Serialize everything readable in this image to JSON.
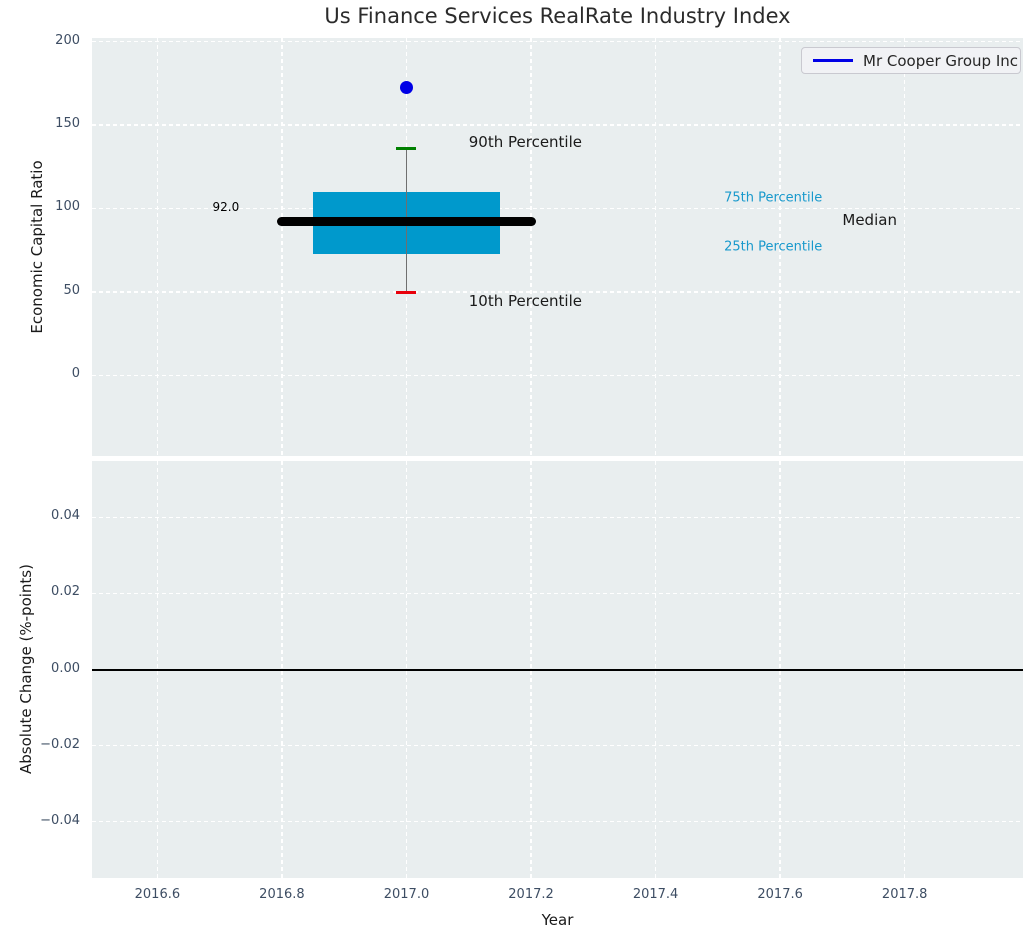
{
  "title": "Us Finance Services RealRate Industry Index",
  "colors": {
    "figure_background": "#ffffff",
    "axes_background": "#e9eeef",
    "grid": "#ffffff",
    "tick_label": "#3d4d63",
    "box_fill": "#0099cc",
    "whisker": "#6f6f6f",
    "cap_90th": "#008000",
    "cap_10th": "#e8000b",
    "median_line": "#000000",
    "company_point": "#0000e6",
    "zero_line": "#000000",
    "percentile_label": "#1899cc"
  },
  "chart_data": [
    {
      "type": "boxplot",
      "position": "top",
      "ylabel": "Economic Capital Ratio",
      "xlim": [
        2016.495,
        2017.99
      ],
      "ylim": [
        -48.3,
        202.1
      ],
      "yticks": [
        0,
        50,
        100,
        150,
        200
      ],
      "ytick_labels": [
        "0",
        "50",
        "100",
        "150",
        "200"
      ],
      "xticks": [
        2016.6,
        2016.8,
        2017.0,
        2017.2,
        2017.4,
        2017.6,
        2017.8
      ],
      "grid": true,
      "legend": {
        "position": "upper right",
        "entries": [
          {
            "label": "Mr Cooper Group Inc",
            "color": "#0000e6"
          }
        ]
      },
      "box": {
        "year": 2017.0,
        "p10": 49.5,
        "p25": 72.5,
        "median": 92.0,
        "p75": 110.0,
        "p90": 136.0,
        "box_width_years": 0.3,
        "median_width_years": 0.4,
        "median_label": "92.0"
      },
      "company_point": {
        "name": "Mr Cooper Group Inc",
        "year": 2017.0,
        "value": 172.5
      },
      "annotations": [
        {
          "id": "90th-percentile",
          "text": "90th Percentile",
          "x": 2017.1,
          "y": 140,
          "ha": "left",
          "color": "#1a1a1a",
          "size": 15
        },
        {
          "id": "10th-percentile",
          "text": "10th Percentile",
          "x": 2017.1,
          "y": 44.5,
          "ha": "left",
          "color": "#1a1a1a",
          "size": 15
        },
        {
          "id": "75th-percentile",
          "text": "75th Percentile",
          "x": 2017.51,
          "y": 106,
          "ha": "left",
          "color": "#1899cc",
          "size": 13
        },
        {
          "id": "25th-percentile",
          "text": "25th Percentile",
          "x": 2017.51,
          "y": 77,
          "ha": "left",
          "color": "#1899cc",
          "size": 13
        },
        {
          "id": "median",
          "text": "Median",
          "x": 2017.7,
          "y": 93,
          "ha": "left",
          "color": "#1a1a1a",
          "size": 15
        },
        {
          "id": "median-value",
          "text": "92.0",
          "x": 2016.71,
          "y": 101,
          "ha": "center",
          "color": "#000000",
          "size": 12
        }
      ]
    },
    {
      "type": "line",
      "position": "bottom",
      "ylabel": "Absolute Change (%-points)",
      "xlabel": "Year",
      "xlim": [
        2016.495,
        2017.99
      ],
      "ylim": [
        -0.0548,
        0.0548
      ],
      "yticks": [
        0.04,
        0.02,
        0,
        -0.02,
        -0.04
      ],
      "ytick_labels": [
        "0.04",
        "0.02",
        "0.00",
        "−0.02",
        "−0.04"
      ],
      "xticks": [
        2016.6,
        2016.8,
        2017.0,
        2017.2,
        2017.4,
        2017.6,
        2017.8
      ],
      "xtick_labels": [
        "2016.6",
        "2016.8",
        "2017.0",
        "2017.2",
        "2017.4",
        "2017.6",
        "2017.8"
      ],
      "grid": true,
      "series": [
        {
          "name": "zero-reference",
          "type": "hline",
          "y": 0.0,
          "color": "#000000"
        }
      ]
    }
  ]
}
